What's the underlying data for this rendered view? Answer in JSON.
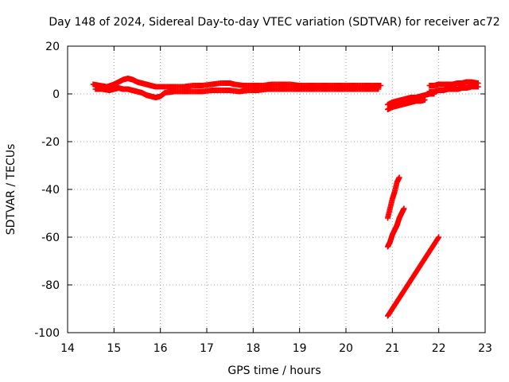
{
  "chart_data": {
    "type": "scatter",
    "title": "Day 148 of 2024, Sidereal Day-to-day VTEC variation (SDTVAR) for receiver ac72",
    "xlabel": "GPS time / hours",
    "ylabel": "SDTVAR / TECUs",
    "xlim": [
      14,
      23
    ],
    "ylim": [
      -100,
      20
    ],
    "xticks": [
      "14",
      "15",
      "16",
      "17",
      "18",
      "19",
      "20",
      "21",
      "22",
      "23"
    ],
    "yticks": [
      "20",
      "0",
      "-20",
      "-40",
      "-60",
      "-80",
      "-100"
    ],
    "grid": true,
    "legend": "none",
    "marker": "plus",
    "color": "#ff0000",
    "series": [
      {
        "x": [
          14.55,
          14.7,
          14.85,
          15.0,
          15.1,
          15.2,
          15.3,
          15.4,
          15.5,
          15.6,
          15.7,
          15.8,
          15.9,
          16.0,
          16.1,
          16.3,
          16.5,
          16.7,
          16.9,
          17.1,
          17.3,
          17.5,
          17.6,
          17.8,
          18.0,
          18.2,
          18.4,
          18.6,
          18.8,
          19.0,
          19.2,
          19.4,
          19.6,
          19.8,
          20.0,
          20.2,
          20.4,
          20.6,
          20.75
        ],
        "y": [
          4,
          3.5,
          3,
          4,
          5,
          6,
          6.5,
          6,
          5,
          4.5,
          4,
          3.5,
          3,
          3,
          3,
          3,
          3,
          3.5,
          3.5,
          4,
          4.5,
          4.5,
          4,
          3.5,
          3.5,
          3.5,
          4,
          4,
          4,
          3.5,
          3.5,
          3.5,
          3.5,
          3.5,
          3.5,
          3.5,
          3.5,
          3.5,
          3.5
        ]
      },
      {
        "x": [
          14.6,
          14.75,
          14.9,
          15.0,
          15.1,
          15.2,
          15.3,
          15.4,
          15.5,
          15.6,
          15.7,
          15.8,
          15.9,
          16.0,
          16.1,
          16.3,
          16.5,
          16.7,
          16.9,
          17.1,
          17.3,
          17.5,
          17.7,
          17.9,
          18.1,
          18.3,
          18.5,
          18.7,
          18.9,
          19.1,
          19.3,
          19.5,
          19.7,
          19.9,
          20.1,
          20.3,
          20.5,
          20.7
        ],
        "y": [
          2,
          2,
          1.5,
          2,
          2.5,
          2,
          2,
          1.5,
          1,
          0.5,
          -0.5,
          -1,
          -1.5,
          -1,
          0.5,
          1,
          1,
          1,
          1,
          1.5,
          1.5,
          1.5,
          1,
          1.5,
          1.5,
          2,
          2,
          2,
          2,
          2,
          2,
          2,
          2,
          2,
          2,
          2,
          2,
          2
        ]
      },
      {
        "x": [
          20.9,
          21.0,
          21.1,
          21.2,
          21.3,
          21.4,
          21.5,
          21.6,
          21.7,
          21.8,
          21.9
        ],
        "y": [
          -4.5,
          -3.5,
          -3,
          -2.5,
          -2,
          -1.5,
          -1.5,
          -1,
          -0.5,
          0,
          0
        ]
      },
      {
        "x": [
          20.9,
          21.0,
          21.1,
          21.2,
          21.3,
          21.4,
          21.5,
          21.6,
          21.7
        ],
        "y": [
          -6.5,
          -5.5,
          -5,
          -4.5,
          -4,
          -3.5,
          -3,
          -3,
          -2.5
        ]
      },
      {
        "x": [
          21.8,
          21.9,
          22.0,
          22.1,
          22.2,
          22.3,
          22.4,
          22.5,
          22.6,
          22.7,
          22.85
        ],
        "y": [
          3.5,
          3.5,
          4,
          4,
          4,
          4,
          4.5,
          4.5,
          5,
          5,
          4.5
        ]
      },
      {
        "x": [
          21.8,
          21.9,
          22.0,
          22.1,
          22.2,
          22.3,
          22.4,
          22.5,
          22.6,
          22.7,
          22.85
        ],
        "y": [
          1,
          1,
          1.5,
          1.5,
          2,
          2,
          2,
          2.5,
          2.5,
          3,
          3
        ]
      },
      {
        "x": [
          20.9,
          20.95,
          21.0,
          21.05,
          21.1,
          21.15
        ],
        "y": [
          -52,
          -48,
          -44,
          -41,
          -37,
          -35
        ]
      },
      {
        "x": [
          20.9,
          20.95,
          21.0,
          21.05,
          21.1,
          21.15,
          21.2,
          21.25
        ],
        "y": [
          -64,
          -62,
          -59,
          -57,
          -55,
          -52,
          -50,
          -48
        ]
      },
      {
        "x": [
          20.9,
          21.0,
          21.1,
          21.2,
          21.3,
          21.4,
          21.5,
          21.6,
          21.7,
          21.8,
          21.9,
          22.0
        ],
        "y": [
          -93,
          -90,
          -87,
          -84,
          -81,
          -78,
          -75,
          -72,
          -69,
          -66,
          -63,
          -60
        ]
      }
    ]
  }
}
